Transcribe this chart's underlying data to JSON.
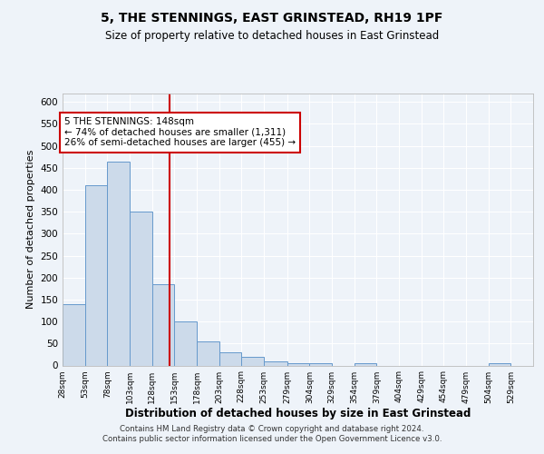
{
  "title": "5, THE STENNINGS, EAST GRINSTEAD, RH19 1PF",
  "subtitle": "Size of property relative to detached houses in East Grinstead",
  "xlabel": "Distribution of detached houses by size in East Grinstead",
  "ylabel": "Number of detached properties",
  "bin_edges": [
    28,
    53,
    78,
    103,
    128,
    153,
    178,
    203,
    228,
    253,
    279,
    304,
    329,
    354,
    379,
    404,
    429,
    454,
    479,
    504,
    529
  ],
  "bar_heights": [
    140,
    410,
    465,
    350,
    185,
    100,
    55,
    30,
    20,
    10,
    5,
    5,
    0,
    5,
    0,
    0,
    0,
    0,
    0,
    5
  ],
  "bar_color": "#ccdaea",
  "bar_edge_color": "#6699cc",
  "property_size": 148,
  "property_line_color": "#cc0000",
  "annotation_text": "5 THE STENNINGS: 148sqm\n← 74% of detached houses are smaller (1,311)\n26% of semi-detached houses are larger (455) →",
  "annotation_box_color": "#ffffff",
  "annotation_box_edge": "#cc0000",
  "ylim": [
    0,
    620
  ],
  "yticks": [
    0,
    50,
    100,
    150,
    200,
    250,
    300,
    350,
    400,
    450,
    500,
    550,
    600
  ],
  "tick_labels": [
    "28sqm",
    "53sqm",
    "78sqm",
    "103sqm",
    "128sqm",
    "153sqm",
    "178sqm",
    "203sqm",
    "228sqm",
    "253sqm",
    "279sqm",
    "304sqm",
    "329sqm",
    "354sqm",
    "379sqm",
    "404sqm",
    "429sqm",
    "454sqm",
    "479sqm",
    "504sqm",
    "529sqm"
  ],
  "footer": "Contains HM Land Registry data © Crown copyright and database right 2024.\nContains public sector information licensed under the Open Government Licence v3.0.",
  "bg_color": "#eef3f9",
  "plot_bg_color": "#eef3f9"
}
